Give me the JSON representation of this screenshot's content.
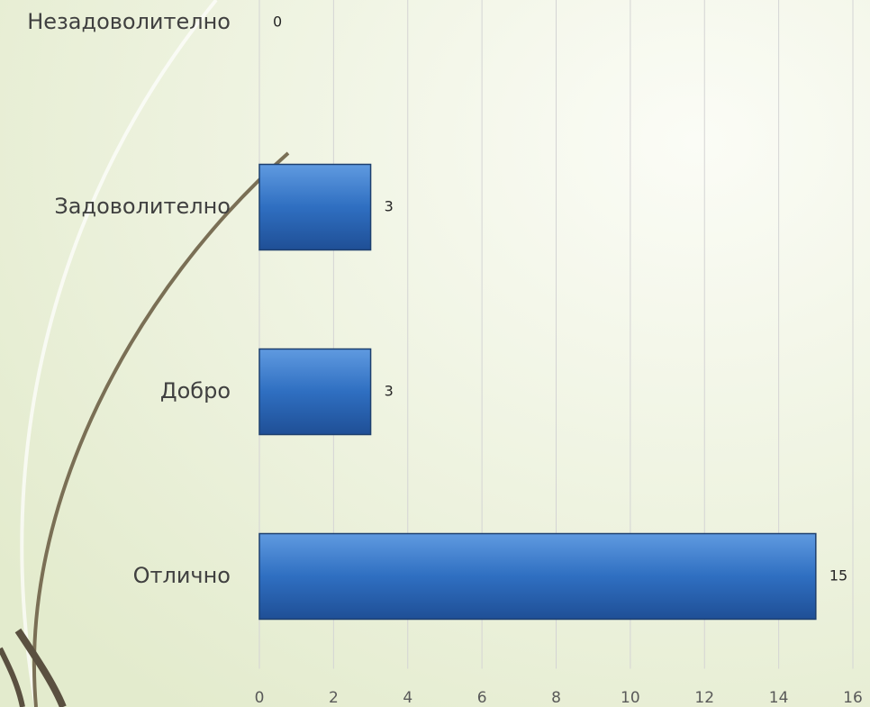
{
  "chart_data": {
    "type": "bar",
    "orientation": "horizontal",
    "categories": [
      "Незадоволително",
      "Задоволително",
      "Добро",
      "Отлично"
    ],
    "values": [
      0,
      3,
      3,
      15
    ],
    "color": "#2f6fc1",
    "xlim": [
      0,
      16
    ],
    "xticks": [
      0,
      2,
      4,
      6,
      8,
      10,
      12,
      14,
      16
    ],
    "grid": true
  }
}
